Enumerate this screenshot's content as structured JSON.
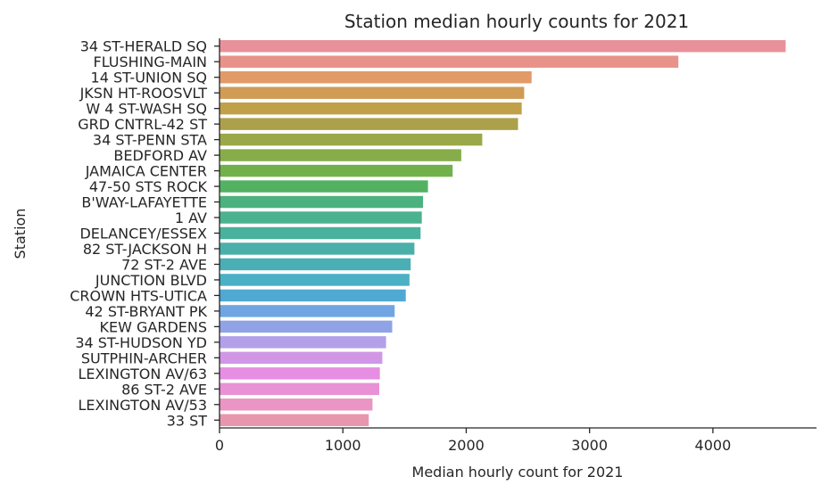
{
  "chart_data": {
    "type": "bar",
    "orientation": "horizontal",
    "title": "Station median hourly counts for 2021",
    "xlabel": "Median hourly count for 2021",
    "ylabel": "Station",
    "xlim": [
      0,
      4840
    ],
    "xticks": [
      0,
      1000,
      2000,
      3000,
      4000
    ],
    "grid": false,
    "categories": [
      "34 ST-HERALD SQ",
      "FLUSHING-MAIN",
      "14 ST-UNION SQ",
      "JKSN HT-ROOSVLT",
      "W 4 ST-WASH SQ",
      "GRD CNTRL-42 ST",
      "34 ST-PENN STA",
      "BEDFORD AV",
      "JAMAICA CENTER",
      "47-50 STS ROCK",
      "B'WAY-LAFAYETTE",
      "1 AV",
      "DELANCEY/ESSEX",
      "82 ST-JACKSON H",
      "72 ST-2 AVE",
      "JUNCTION BLVD",
      "CROWN HTS-UTICA",
      "42 ST-BRYANT PK",
      "KEW GARDENS",
      "34 ST-HUDSON YD",
      "SUTPHIN-ARCHER",
      "LEXINGTON AV/63",
      "86 ST-2 AVE",
      "LEXINGTON AV/53",
      "33 ST"
    ],
    "values": [
      4590,
      3720,
      2530,
      2470,
      2450,
      2420,
      2130,
      1960,
      1890,
      1690,
      1650,
      1640,
      1630,
      1580,
      1550,
      1540,
      1510,
      1420,
      1400,
      1350,
      1320,
      1300,
      1295,
      1240,
      1210
    ],
    "colors": [
      "#e8919b",
      "#e8928a",
      "#e29a68",
      "#d09b55",
      "#c1a04a",
      "#ada04b",
      "#9aa848",
      "#86ad4a",
      "#71b14c",
      "#53b262",
      "#4bb27f",
      "#4bb28f",
      "#4ab19c",
      "#4aafa9",
      "#4aafb5",
      "#4bb0c4",
      "#4fa9d3",
      "#6fa6e2",
      "#8fa3e6",
      "#b2a0e8",
      "#d197e6",
      "#e68ee2",
      "#e991d6",
      "#ea95c4",
      "#e896ae"
    ]
  }
}
